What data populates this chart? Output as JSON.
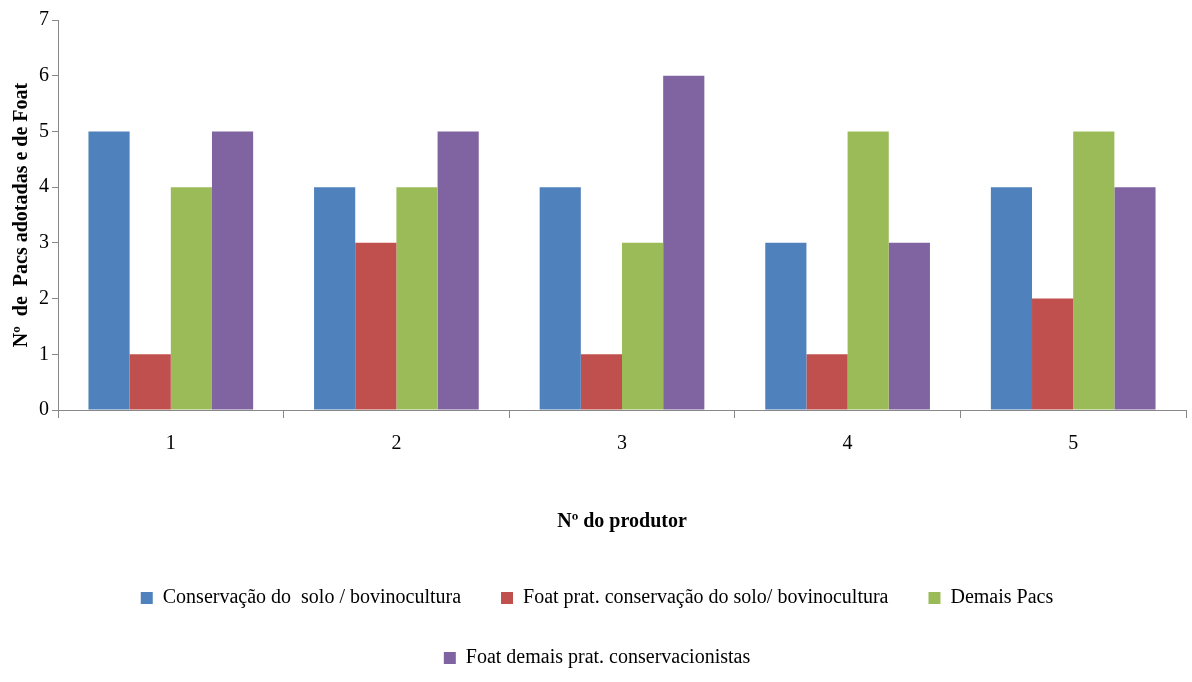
{
  "chart_data": {
    "type": "bar",
    "xlabel": "Nº do produtor",
    "ylabel": "Nº  de  Pacs adotadas e de Foat",
    "categories": [
      "1",
      "2",
      "3",
      "4",
      "5"
    ],
    "series": [
      {
        "name": "Conservação do  solo / bovinocultura",
        "color": "#4f81bd",
        "values": [
          5,
          4,
          4,
          3,
          4
        ]
      },
      {
        "name": "Foat prat. conservação do solo/ bovinocultura",
        "color": "#c0504d",
        "values": [
          1,
          3,
          1,
          1,
          2
        ]
      },
      {
        "name": "Demais Pacs",
        "color": "#9bbb59",
        "values": [
          4,
          4,
          3,
          5,
          5
        ]
      },
      {
        "name": "Foat demais prat. conservacionistas",
        "color": "#8064a2",
        "values": [
          5,
          5,
          6,
          3,
          4
        ]
      }
    ],
    "ylim": [
      0,
      7
    ],
    "yticks": [
      0,
      1,
      2,
      3,
      4,
      5,
      6,
      7
    ],
    "grid": false,
    "legend": "bottom"
  }
}
